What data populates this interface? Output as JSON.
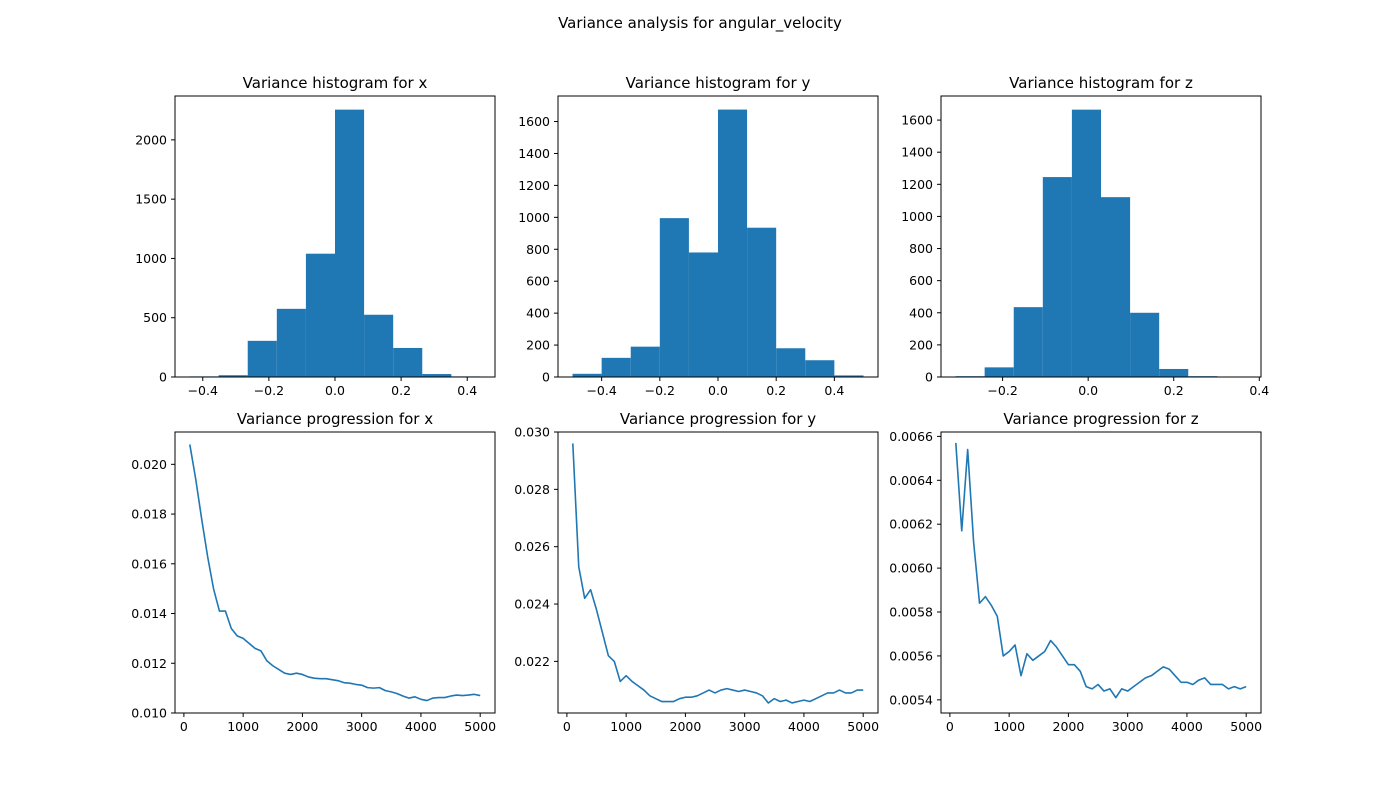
{
  "figure_title": "Variance analysis for angular_velocity",
  "colors": {
    "series": "#1f77b4"
  },
  "chart_data": [
    {
      "type": "bar",
      "title": "Variance histogram for x",
      "bin_edges": [
        -0.44,
        -0.352,
        -0.264,
        -0.176,
        -0.088,
        0.0,
        0.088,
        0.176,
        0.264,
        0.352,
        0.44
      ],
      "values": [
        5,
        15,
        305,
        575,
        1040,
        2255,
        525,
        245,
        25,
        5
      ],
      "xlim": [
        -0.484,
        0.484
      ],
      "ylim": [
        0,
        2370
      ],
      "xticks": [
        -0.4,
        -0.2,
        0.0,
        0.2,
        0.4
      ],
      "xtick_labels": [
        "−0.4",
        "−0.2",
        "0.0",
        "0.2",
        "0.4"
      ],
      "yticks": [
        0,
        500,
        1000,
        1500,
        2000
      ],
      "ytick_labels": [
        "0",
        "500",
        "1000",
        "1500",
        "2000"
      ]
    },
    {
      "type": "bar",
      "title": "Variance histogram for y",
      "bin_edges": [
        -0.5,
        -0.4,
        -0.3,
        -0.2,
        -0.1,
        0.0,
        0.1,
        0.2,
        0.3,
        0.4,
        0.5
      ],
      "values": [
        20,
        120,
        190,
        995,
        780,
        1675,
        935,
        180,
        105,
        10
      ],
      "xlim": [
        -0.55,
        0.55
      ],
      "ylim": [
        0,
        1760
      ],
      "xticks": [
        -0.4,
        -0.2,
        0.0,
        0.2,
        0.4
      ],
      "xtick_labels": [
        "−0.4",
        "−0.2",
        "0.0",
        "0.2",
        "0.4"
      ],
      "yticks": [
        0,
        200,
        400,
        600,
        800,
        1000,
        1200,
        1400,
        1600
      ],
      "ytick_labels": [
        "0",
        "200",
        "400",
        "600",
        "800",
        "1000",
        "1200",
        "1400",
        "1600"
      ]
    },
    {
      "type": "bar",
      "title": "Variance histogram for z",
      "bin_edges": [
        -0.31,
        -0.242,
        -0.174,
        -0.106,
        -0.038,
        0.03,
        0.098,
        0.166,
        0.234,
        0.302,
        0.37
      ],
      "values": [
        5,
        60,
        435,
        1245,
        1665,
        1120,
        400,
        50,
        5,
        0
      ],
      "xlim": [
        -0.344,
        0.404
      ],
      "ylim": [
        0,
        1750
      ],
      "xticks": [
        -0.2,
        0.0,
        0.2,
        0.4
      ],
      "xtick_labels": [
        "−0.2",
        "0.0",
        "0.2",
        "0.4"
      ],
      "yticks": [
        0,
        200,
        400,
        600,
        800,
        1000,
        1200,
        1400,
        1600
      ],
      "ytick_labels": [
        "0",
        "200",
        "400",
        "600",
        "800",
        "1000",
        "1200",
        "1400",
        "1600"
      ]
    },
    {
      "type": "line",
      "title": "Variance progression for x",
      "x": [
        100,
        200,
        300,
        400,
        500,
        600,
        700,
        800,
        900,
        1000,
        1100,
        1200,
        1300,
        1400,
        1500,
        1600,
        1700,
        1800,
        1900,
        2000,
        2100,
        2200,
        2300,
        2400,
        2500,
        2600,
        2700,
        2800,
        2900,
        3000,
        3100,
        3200,
        3300,
        3400,
        3500,
        3600,
        3700,
        3800,
        3900,
        4000,
        4100,
        4200,
        4300,
        4400,
        4500,
        4600,
        4700,
        4800,
        4900,
        5000
      ],
      "y": [
        0.0208,
        0.0194,
        0.0178,
        0.0163,
        0.015,
        0.0141,
        0.0141,
        0.0134,
        0.0131,
        0.013,
        0.0128,
        0.0126,
        0.0125,
        0.0121,
        0.0119,
        0.01175,
        0.0116,
        0.01155,
        0.0116,
        0.01155,
        0.01145,
        0.0114,
        0.01138,
        0.01138,
        0.01134,
        0.0113,
        0.01122,
        0.0112,
        0.01115,
        0.01112,
        0.01102,
        0.011,
        0.01102,
        0.0109,
        0.01085,
        0.01078,
        0.01068,
        0.0106,
        0.01065,
        0.01055,
        0.0105,
        0.0106,
        0.01062,
        0.01062,
        0.01068,
        0.01072,
        0.0107,
        0.01072,
        0.01075,
        0.0107
      ],
      "xlim": [
        -150,
        5250
      ],
      "ylim": [
        0.01,
        0.0213
      ],
      "xticks": [
        0,
        1000,
        2000,
        3000,
        4000,
        5000
      ],
      "xtick_labels": [
        "0",
        "1000",
        "2000",
        "3000",
        "4000",
        "5000"
      ],
      "yticks": [
        0.01,
        0.012,
        0.014,
        0.016,
        0.018,
        0.02
      ],
      "ytick_labels": [
        "0.010",
        "0.012",
        "0.014",
        "0.016",
        "0.018",
        "0.020"
      ]
    },
    {
      "type": "line",
      "title": "Variance progression for y",
      "x": [
        100,
        200,
        300,
        400,
        500,
        600,
        700,
        800,
        900,
        1000,
        1100,
        1200,
        1300,
        1400,
        1500,
        1600,
        1700,
        1800,
        1900,
        2000,
        2100,
        2200,
        2300,
        2400,
        2500,
        2600,
        2700,
        2800,
        2900,
        3000,
        3100,
        3200,
        3300,
        3400,
        3500,
        3600,
        3700,
        3800,
        3900,
        4000,
        4100,
        4200,
        4300,
        4400,
        4500,
        4600,
        4700,
        4800,
        4900,
        5000
      ],
      "y": [
        0.0296,
        0.0253,
        0.0242,
        0.0245,
        0.0238,
        0.023,
        0.0222,
        0.022,
        0.0213,
        0.0215,
        0.0213,
        0.02115,
        0.021,
        0.0208,
        0.0207,
        0.0206,
        0.0206,
        0.0206,
        0.0207,
        0.02075,
        0.02075,
        0.0208,
        0.0209,
        0.021,
        0.0209,
        0.021,
        0.02105,
        0.021,
        0.02095,
        0.021,
        0.02095,
        0.0209,
        0.0208,
        0.02055,
        0.0207,
        0.0206,
        0.02065,
        0.02055,
        0.0206,
        0.02065,
        0.0206,
        0.0207,
        0.0208,
        0.0209,
        0.0209,
        0.021,
        0.0209,
        0.0209,
        0.021,
        0.021
      ],
      "xlim": [
        -150,
        5250
      ],
      "ylim": [
        0.0202,
        0.03
      ],
      "xticks": [
        0,
        1000,
        2000,
        3000,
        4000,
        5000
      ],
      "xtick_labels": [
        "0",
        "1000",
        "2000",
        "3000",
        "4000",
        "5000"
      ],
      "yticks": [
        0.022,
        0.024,
        0.026,
        0.028,
        0.03
      ],
      "ytick_labels": [
        "0.022",
        "0.024",
        "0.026",
        "0.028",
        "0.030"
      ]
    },
    {
      "type": "line",
      "title": "Variance progression for z",
      "x": [
        100,
        200,
        300,
        400,
        500,
        600,
        700,
        800,
        900,
        1000,
        1100,
        1200,
        1300,
        1400,
        1500,
        1600,
        1700,
        1800,
        1900,
        2000,
        2100,
        2200,
        2300,
        2400,
        2500,
        2600,
        2700,
        2800,
        2900,
        3000,
        3100,
        3200,
        3300,
        3400,
        3500,
        3600,
        3700,
        3800,
        3900,
        4000,
        4100,
        4200,
        4300,
        4400,
        4500,
        4600,
        4700,
        4800,
        4900,
        5000
      ],
      "y": [
        0.00657,
        0.00617,
        0.00654,
        0.00612,
        0.00584,
        0.00587,
        0.00583,
        0.00578,
        0.0056,
        0.00562,
        0.00565,
        0.00551,
        0.00561,
        0.00558,
        0.0056,
        0.00562,
        0.00567,
        0.00564,
        0.0056,
        0.00556,
        0.00556,
        0.00553,
        0.00546,
        0.00545,
        0.00547,
        0.00544,
        0.00545,
        0.00541,
        0.00545,
        0.00544,
        0.00546,
        0.00548,
        0.0055,
        0.00551,
        0.00553,
        0.00555,
        0.00554,
        0.00551,
        0.00548,
        0.00548,
        0.00547,
        0.00549,
        0.0055,
        0.00547,
        0.00547,
        0.00547,
        0.00545,
        0.00546,
        0.00545,
        0.00546
      ],
      "xlim": [
        -150,
        5250
      ],
      "ylim": [
        0.00534,
        0.00662
      ],
      "xticks": [
        0,
        1000,
        2000,
        3000,
        4000,
        5000
      ],
      "xtick_labels": [
        "0",
        "1000",
        "2000",
        "3000",
        "4000",
        "5000"
      ],
      "yticks": [
        0.0054,
        0.0056,
        0.0058,
        0.006,
        0.0062,
        0.0064,
        0.0066
      ],
      "ytick_labels": [
        "0.0054",
        "0.0056",
        "0.0058",
        "0.0060",
        "0.0062",
        "0.0064",
        "0.0066"
      ]
    }
  ]
}
